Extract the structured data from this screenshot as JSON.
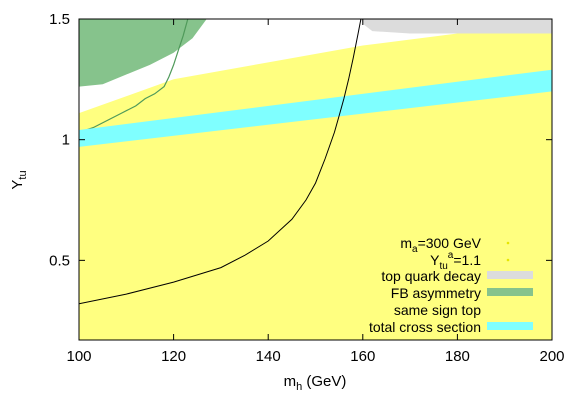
{
  "chart_data": {
    "type": "area",
    "title": "",
    "xlabel": "m",
    "xlabel_sub": "h",
    "xlabel_unit": " (GeV)",
    "ylabel": "Y",
    "ylabel_sub": "tu",
    "xlim": [
      100,
      200
    ],
    "ylim": [
      0.17,
      1.5
    ],
    "x_ticks": [
      100,
      120,
      140,
      160,
      180,
      200
    ],
    "x_tick_labels": [
      "100",
      "120",
      "140",
      "160",
      "180",
      "200"
    ],
    "y_ticks": [
      0.5,
      1,
      1.5
    ],
    "y_tick_labels": [
      "0.5",
      "1",
      "1.5"
    ],
    "grid": false,
    "legend_position": "bottom-right",
    "legend": {
      "parameter_line_1": {
        "base": "m",
        "sub": "a",
        "rest": "=300 GeV"
      },
      "parameter_line_2": {
        "base": "Y",
        "sub": "tu",
        "sup": "a",
        "rest": "=1.1"
      },
      "entries": [
        {
          "label": "top quark decay",
          "color": "#dcdcdc"
        },
        {
          "label": "FB asymmetry",
          "color": "#86c38c"
        },
        {
          "label": "same sign top",
          "color": "#ffff80"
        },
        {
          "label": "total cross section",
          "color": "#7fffff"
        }
      ]
    },
    "regions": {
      "same_sign_top": {
        "color": "#ffff80",
        "upper_boundary": [
          [
            100,
            1.11
          ],
          [
            120,
            1.25
          ],
          [
            140,
            1.32
          ],
          [
            160,
            1.39
          ],
          [
            180,
            1.44
          ],
          [
            200,
            1.48
          ]
        ]
      },
      "total_cross_section": {
        "color": "#7fffff",
        "lower": [
          [
            100,
            0.97
          ],
          [
            200,
            1.2
          ]
        ],
        "upper": [
          [
            100,
            1.04
          ],
          [
            200,
            1.29
          ]
        ]
      },
      "top_quark_decay": {
        "color": "#dcdcdc",
        "boundary": [
          [
            159.6,
            1.5
          ],
          [
            160,
            1.48
          ],
          [
            162,
            1.45
          ],
          [
            170,
            1.44
          ],
          [
            200,
            1.44
          ]
        ]
      },
      "fb_asymmetry": {
        "color": "#86c38c",
        "boundary": [
          [
            100,
            1.22
          ],
          [
            105,
            1.23
          ],
          [
            110,
            1.27
          ],
          [
            115,
            1.31
          ],
          [
            120,
            1.36
          ],
          [
            124,
            1.42
          ],
          [
            127,
            1.5
          ]
        ],
        "thin_strip_boundary": [
          [
            100,
            1.03
          ],
          [
            103,
            1.05
          ],
          [
            106,
            1.08
          ],
          [
            109,
            1.11
          ],
          [
            112,
            1.14
          ],
          [
            114,
            1.17
          ],
          [
            116,
            1.19
          ],
          [
            118,
            1.22
          ],
          [
            119,
            1.26
          ],
          [
            120,
            1.31
          ],
          [
            121,
            1.37
          ],
          [
            122,
            1.43
          ],
          [
            123,
            1.5
          ]
        ]
      }
    },
    "curve": {
      "color": "#000000",
      "points": [
        [
          100,
          0.32
        ],
        [
          110,
          0.36
        ],
        [
          120,
          0.41
        ],
        [
          130,
          0.47
        ],
        [
          135,
          0.52
        ],
        [
          140,
          0.58
        ],
        [
          145,
          0.67
        ],
        [
          148,
          0.75
        ],
        [
          150,
          0.82
        ],
        [
          152,
          0.92
        ],
        [
          154,
          1.03
        ],
        [
          155,
          1.1
        ],
        [
          156,
          1.17
        ],
        [
          157,
          1.25
        ],
        [
          158,
          1.34
        ],
        [
          159,
          1.44
        ],
        [
          159.6,
          1.5
        ]
      ]
    }
  }
}
